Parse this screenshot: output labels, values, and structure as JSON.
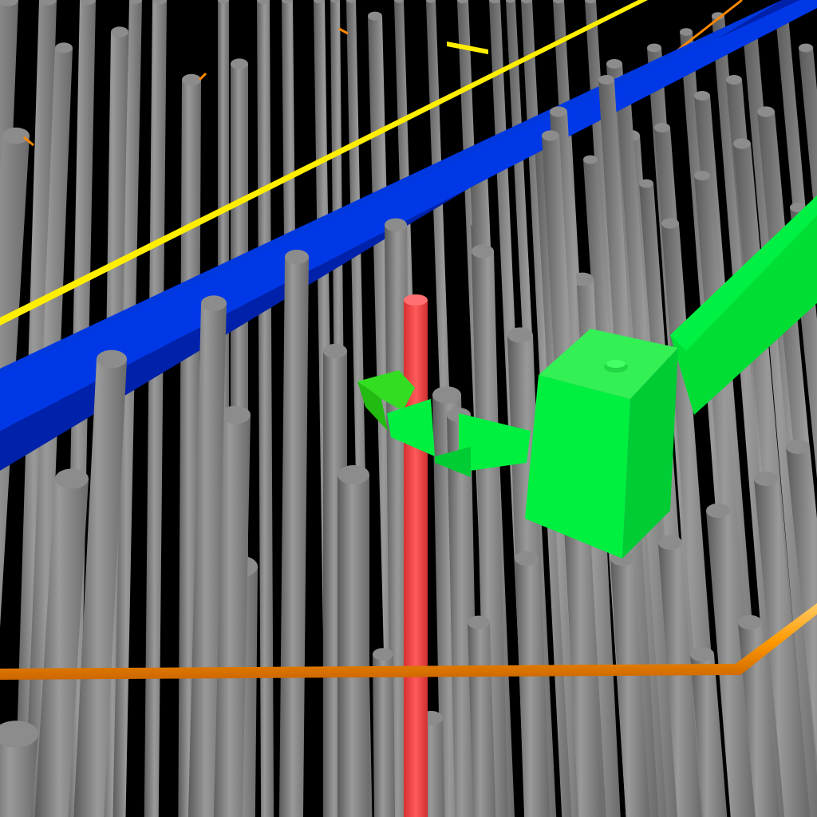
{
  "scene": {
    "background": "#000000",
    "objects": [
      {
        "name": "gray-poles",
        "color": "#8a8a8a"
      },
      {
        "name": "blue-beam",
        "color": "#0033dd"
      },
      {
        "name": "yellow-line",
        "color": "#ffee00"
      },
      {
        "name": "orange-line",
        "color": "#ff9900"
      },
      {
        "name": "red-pole",
        "color": "#ff4a4a"
      },
      {
        "name": "green-gripper",
        "color": "#00ee44"
      }
    ]
  }
}
